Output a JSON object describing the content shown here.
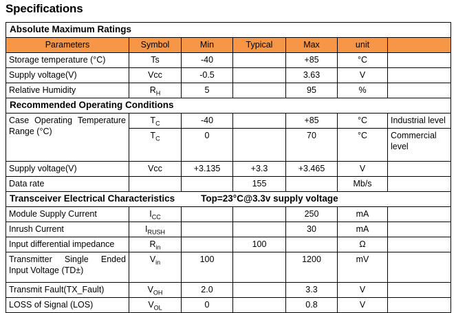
{
  "page": {
    "title": "Specifications"
  },
  "accent_color": "#F79646",
  "table": {
    "columns": [
      "Parameters",
      "Symbol",
      "Min",
      "Typical",
      "Max",
      "unit",
      ""
    ],
    "rows": [
      {
        "type": "section",
        "label": "Absolute Maximum Ratings",
        "note": ""
      },
      {
        "type": "columns"
      },
      {
        "type": "data",
        "param": "Storage temperature (°C)",
        "symbol": "Ts",
        "sub": "",
        "min": "-40",
        "typical": "",
        "max": "+85",
        "unit": "°C",
        "note": ""
      },
      {
        "type": "data",
        "param": "Supply voltage(V)",
        "symbol": "Vcc",
        "sub": "",
        "min": "-0.5",
        "typical": "",
        "max": "3.63",
        "unit": "V",
        "note": ""
      },
      {
        "type": "data",
        "param": "Relative Humidity",
        "symbol": "R",
        "sub": "H",
        "min": "5",
        "typical": "",
        "max": "95",
        "unit": "%",
        "note": ""
      },
      {
        "type": "section",
        "label": "Recommended Operating Conditions",
        "note": ""
      },
      {
        "type": "data",
        "param": "Case Operating Temperature Range (°C)",
        "param_rowspan": 2,
        "justify": true,
        "symbol": "T",
        "sub": "C",
        "min": "-40",
        "typical": "",
        "max": "+85",
        "unit": "°C",
        "note": "Industrial level"
      },
      {
        "type": "data",
        "param": null,
        "tall": true,
        "symbol": "T",
        "sub": "C",
        "min": "0",
        "typical": "",
        "max": "70",
        "unit": "°C",
        "note": "Commercial level"
      },
      {
        "type": "data",
        "param": "Supply voltage(V)",
        "symbol": "Vcc",
        "sub": "",
        "min": "+3.135",
        "typical": "+3.3",
        "max": "+3.465",
        "unit": "V",
        "note": ""
      },
      {
        "type": "data",
        "param": "Data rate",
        "symbol": "",
        "sub": "",
        "min": "",
        "typical": "155",
        "max": "",
        "unit": "Mb/s",
        "note": ""
      },
      {
        "type": "section",
        "label": "Transceiver Electrical Characteristics",
        "note": "Top=23°C@3.3v supply voltage"
      },
      {
        "type": "data",
        "param": "Module Supply Current",
        "symbol": "I",
        "sub": "CC",
        "min": "",
        "typical": "",
        "max": "250",
        "unit": "mA",
        "note": ""
      },
      {
        "type": "data",
        "param": "Inrush Current",
        "symbol": "I",
        "sub": "RUSH",
        "min": "",
        "typical": "",
        "max": "30",
        "unit": "mA",
        "note": ""
      },
      {
        "type": "data",
        "param": "Input differential impedance",
        "symbol": "R",
        "sub": "in",
        "min": "",
        "typical": "100",
        "max": "",
        "unit": "Ω",
        "note": ""
      },
      {
        "type": "data",
        "param": "Transmitter Single Ended Input Voltage (TD±)",
        "justify": true,
        "tall2": true,
        "symbol": "V",
        "sub": "in",
        "min": "100",
        "typical": "",
        "max": "1200",
        "unit": "mV",
        "note": ""
      },
      {
        "type": "data",
        "param": "Transmit Fault(TX_Fault)",
        "symbol": "V",
        "sub": "OH",
        "min": "2.0",
        "typical": "",
        "max": "3.3",
        "unit": "V",
        "note": ""
      },
      {
        "type": "data",
        "param": "LOSS of Signal (LOS)",
        "symbol": "V",
        "sub": "OL",
        "min": "0",
        "typical": "",
        "max": "0.8",
        "unit": "V",
        "note": ""
      }
    ]
  }
}
